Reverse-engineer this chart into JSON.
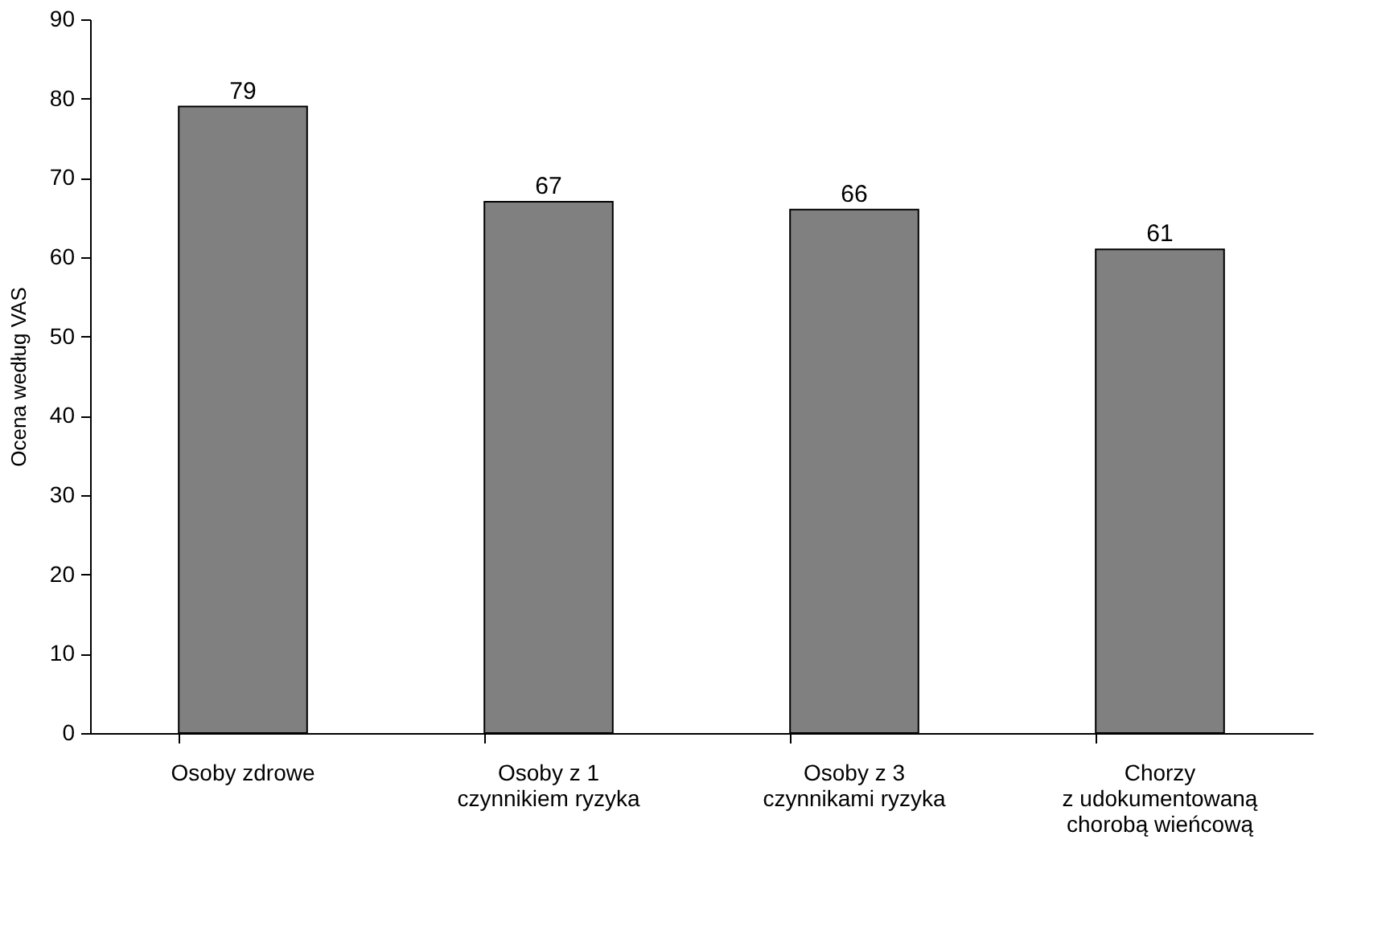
{
  "chart_data": {
    "type": "bar",
    "ylabel": "Ocena według VAS",
    "categories": [
      "Osoby zdrowe",
      "Osoby z 1\nczynnikiem ryzyka",
      "Osoby z 3\nczynnikami ryzyka",
      "Chorzy\nz udokumentowaną\nchorobą wieńcową"
    ],
    "values": [
      79,
      67,
      66,
      61
    ],
    "color": "#808080",
    "ylim": [
      0,
      90
    ],
    "yticks": [
      0,
      10,
      20,
      30,
      40,
      50,
      60,
      70,
      80,
      90
    ],
    "grid": false,
    "data_labels": true
  }
}
